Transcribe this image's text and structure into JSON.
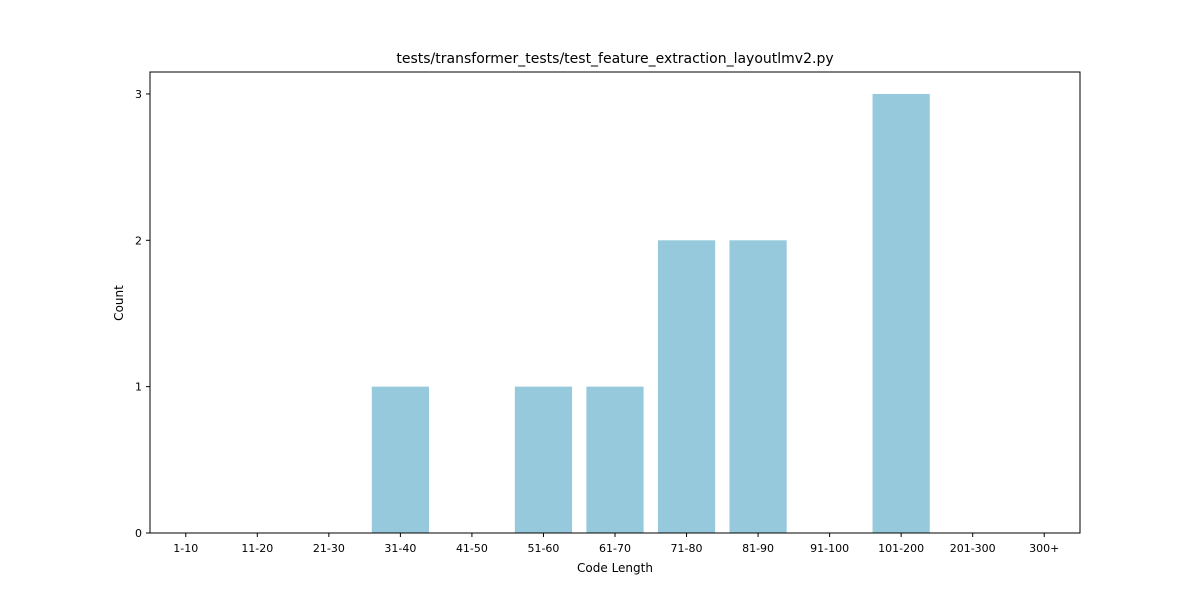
{
  "chart_data": {
    "type": "bar",
    "title": "tests/transformer_tests/test_feature_extraction_layoutlmv2.py",
    "xlabel": "Code Length",
    "ylabel": "Count",
    "categories": [
      "1-10",
      "11-20",
      "21-30",
      "31-40",
      "41-50",
      "51-60",
      "61-70",
      "71-80",
      "81-90",
      "91-100",
      "101-200",
      "201-300",
      "300+"
    ],
    "values": [
      0,
      0,
      0,
      1,
      0,
      1,
      1,
      2,
      2,
      0,
      3,
      0,
      0
    ],
    "ylim": [
      0,
      3.15
    ],
    "yticks": [
      0,
      1,
      2,
      3
    ],
    "bar_color": "#96c9dc",
    "grid": false,
    "legend": "none"
  }
}
